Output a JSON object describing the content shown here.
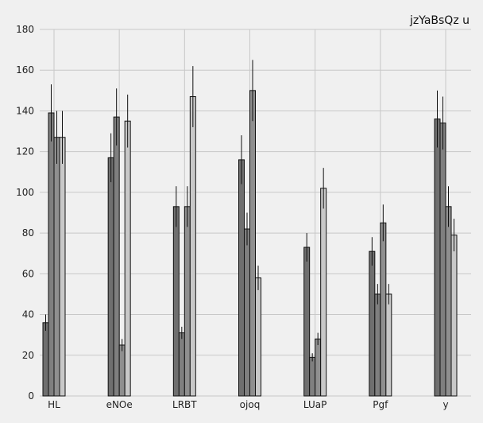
{
  "chart_data": {
    "type": "bar",
    "title": "jzYaBsQz u",
    "xlabel": "",
    "ylabel": "",
    "ylim": [
      0,
      180
    ],
    "yticks": [
      0,
      20,
      40,
      60,
      80,
      100,
      120,
      140,
      160,
      180
    ],
    "grid": true,
    "legend": "none",
    "error_bars": true,
    "categories": [
      "HL",
      "eNOe",
      "LRBT",
      "ojoq",
      "LUaP",
      "Pgf",
      "y"
    ],
    "series": [
      {
        "color": "#6f6f6f",
        "values": [
          36,
          117,
          93,
          116,
          73,
          71,
          136
        ],
        "errors": [
          4,
          12,
          10,
          12,
          7,
          7,
          14
        ]
      },
      {
        "color": "#7f7f7f",
        "values": [
          139,
          137,
          31,
          82,
          19,
          50,
          134
        ],
        "errors": [
          14,
          14,
          3,
          8,
          2,
          5,
          13
        ]
      },
      {
        "color": "#8f8f8f",
        "values": [
          127,
          25,
          93,
          150,
          28,
          85,
          93
        ],
        "errors": [
          13,
          3,
          10,
          15,
          3,
          9,
          10
        ]
      },
      {
        "color": "#c8c8c8",
        "values": [
          127,
          135,
          147,
          58,
          102,
          50,
          79
        ],
        "errors": [
          13,
          13,
          15,
          6,
          10,
          5,
          8
        ]
      }
    ]
  }
}
